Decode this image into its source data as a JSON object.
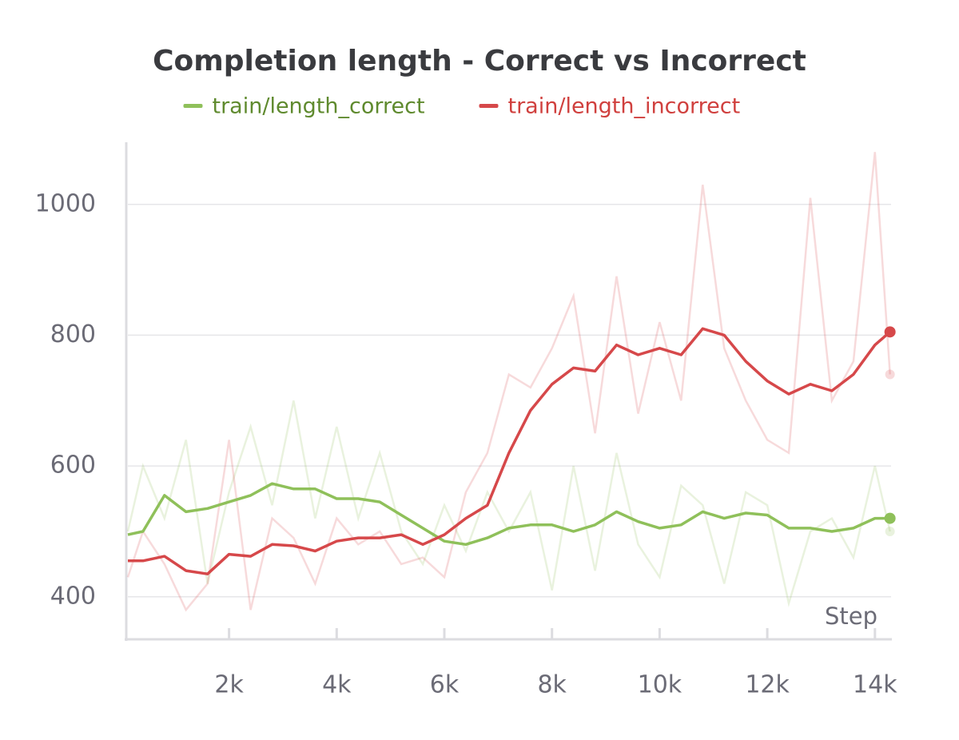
{
  "chart_data": {
    "type": "line",
    "title": "Completion length - Correct vs Incorrect",
    "x_label": "Step",
    "x": [
      120,
      400,
      800,
      1200,
      1600,
      2000,
      2400,
      2800,
      3200,
      3600,
      4000,
      4400,
      4800,
      5200,
      5600,
      6000,
      6400,
      6800,
      7200,
      7600,
      8000,
      8400,
      8800,
      9200,
      9600,
      10000,
      10400,
      10800,
      11200,
      11600,
      12000,
      12400,
      12800,
      13200,
      13600,
      14000,
      14280
    ],
    "series": [
      {
        "name": "train/length_correct",
        "color": "#8fc05a",
        "legend_color": "#5f8a2e",
        "values": [
          495,
          500,
          555,
          530,
          535,
          545,
          555,
          573,
          565,
          565,
          550,
          550,
          545,
          525,
          505,
          485,
          480,
          490,
          505,
          510,
          510,
          500,
          510,
          530,
          515,
          505,
          510,
          530,
          520,
          528,
          525,
          505,
          505,
          500,
          505,
          520,
          520
        ],
        "raw_values": [
          500,
          600,
          520,
          640,
          420,
          560,
          660,
          540,
          700,
          520,
          660,
          520,
          620,
          500,
          450,
          540,
          470,
          560,
          500,
          560,
          410,
          600,
          440,
          620,
          480,
          430,
          570,
          540,
          420,
          560,
          540,
          390,
          500,
          520,
          460,
          600,
          500
        ]
      },
      {
        "name": "train/length_incorrect",
        "color": "#d6484a",
        "legend_color": "#d0403e",
        "values": [
          455,
          455,
          462,
          440,
          435,
          465,
          462,
          480,
          478,
          470,
          485,
          490,
          490,
          495,
          480,
          495,
          520,
          540,
          620,
          685,
          725,
          750,
          745,
          785,
          770,
          780,
          770,
          810,
          800,
          760,
          730,
          710,
          725,
          715,
          740,
          785,
          805
        ],
        "raw_values": [
          430,
          500,
          450,
          380,
          420,
          640,
          380,
          520,
          490,
          420,
          520,
          480,
          500,
          450,
          460,
          430,
          560,
          620,
          740,
          720,
          780,
          860,
          650,
          890,
          680,
          820,
          700,
          1030,
          780,
          700,
          640,
          620,
          1010,
          700,
          760,
          1080,
          740
        ]
      }
    ],
    "xlim": [
      120,
      14300
    ],
    "xticks": [
      {
        "value": 2000,
        "label": "2k"
      },
      {
        "value": 4000,
        "label": "4k"
      },
      {
        "value": 6000,
        "label": "6k"
      },
      {
        "value": 8000,
        "label": "8k"
      },
      {
        "value": 10000,
        "label": "10k"
      },
      {
        "value": 12000,
        "label": "12k"
      },
      {
        "value": 14000,
        "label": "14k"
      }
    ],
    "ylim": [
      335,
      1095
    ],
    "yticks": [
      400,
      600,
      800,
      1000
    ],
    "grid": true
  }
}
